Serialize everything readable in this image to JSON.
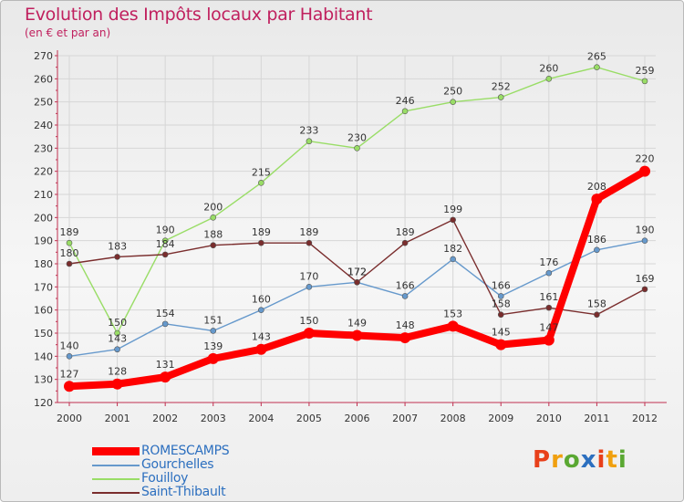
{
  "title": "Evolution des Impôts locaux par Habitant",
  "subtitle": "(en € et par an)",
  "logo": {
    "text": "Proxiti",
    "letter_colors": [
      "#e8401a",
      "#f0a010",
      "#5aa832",
      "#2c6fbf",
      "#e8401a",
      "#f0a010",
      "#5aa832"
    ]
  },
  "chart_data": {
    "type": "line",
    "title": "Evolution des Impôts locaux par Habitant",
    "subtitle": "(en € et par an)",
    "xlabel": "",
    "ylabel": "",
    "ylim": [
      120,
      270
    ],
    "ytick_step": 10,
    "grid": true,
    "legend_position": "bottom-left",
    "x": [
      "2000",
      "2001",
      "2002",
      "2003",
      "2004",
      "2005",
      "2006",
      "2007",
      "2008",
      "2009",
      "2010",
      "2011",
      "2012"
    ],
    "series": [
      {
        "name": "ROMESCAMPS",
        "color": "#ff0000",
        "emphasis": true,
        "values": [
          127,
          128,
          131,
          139,
          143,
          150,
          149,
          148,
          153,
          145,
          147,
          208,
          220
        ]
      },
      {
        "name": "Gourchelles",
        "color": "#6699cc",
        "emphasis": false,
        "values": [
          140,
          143,
          154,
          151,
          160,
          170,
          172,
          166,
          182,
          166,
          176,
          186,
          190
        ]
      },
      {
        "name": "Fouilloy",
        "color": "#99dd66",
        "emphasis": false,
        "values": [
          189,
          150,
          190,
          200,
          215,
          233,
          230,
          246,
          250,
          252,
          260,
          265,
          259
        ]
      },
      {
        "name": "Saint-Thibault",
        "color": "#7a2d2d",
        "emphasis": false,
        "values": [
          180,
          183,
          184,
          188,
          189,
          189,
          172,
          189,
          199,
          158,
          161,
          158,
          169
        ]
      }
    ]
  }
}
